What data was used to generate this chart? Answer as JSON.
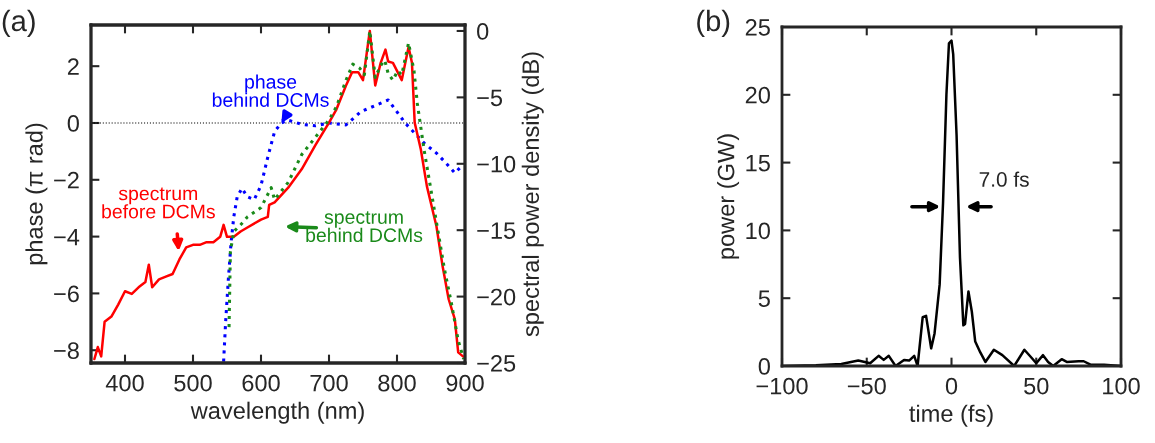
{
  "chart_data": [
    {
      "type": "line",
      "title": "(a)",
      "xlabel": "wavelength (nm)",
      "ylabel": "phase (π rad)",
      "y2label": "spectral power density (dB)",
      "xlim": [
        350,
        900
      ],
      "xticks": [
        400,
        500,
        600,
        700,
        800,
        900
      ],
      "ylim": [
        -8.45,
        3.45
      ],
      "yticks": [
        {
          "value": -8,
          "label": "−8"
        },
        {
          "value": -6,
          "label": "−6"
        },
        {
          "value": -4,
          "label": "−4"
        },
        {
          "value": -2,
          "label": "−2"
        },
        0,
        2
      ],
      "y2lim": [
        -25,
        0.45
      ],
      "y2ticks": [
        {
          "value": -25,
          "label": "−25"
        },
        {
          "value": -20,
          "label": "−20"
        },
        {
          "value": -15,
          "label": "−15"
        },
        {
          "value": -10,
          "label": "−10"
        },
        {
          "value": -5,
          "label": "−5"
        },
        0
      ],
      "ref_lines": [
        {
          "axis": "y",
          "value": 0,
          "color": "#000000",
          "line_style": "dotted"
        }
      ],
      "series": [
        {
          "name": "spectrum\nbefore DCMs",
          "color": "#ff0000",
          "axis": "y2",
          "line_style": "solid",
          "x": [
            355,
            360,
            365,
            370,
            380,
            390,
            400,
            410,
            420,
            430,
            435,
            440,
            450,
            460,
            470,
            480,
            490,
            500,
            510,
            520,
            530,
            540,
            545,
            550,
            560,
            570,
            580,
            600,
            610,
            612,
            620,
            640,
            660,
            680,
            700,
            711,
            725,
            734,
            743,
            750,
            760,
            768,
            776,
            783,
            787,
            794,
            801,
            807,
            817,
            822,
            826,
            835,
            844,
            858,
            867,
            876,
            885,
            890,
            897
          ],
          "values": [
            -24.7,
            -23.8,
            -24.5,
            -21.9,
            -21.5,
            -20.6,
            -19.6,
            -19.8,
            -19.3,
            -18.9,
            -17.6,
            -19.3,
            -18.7,
            -18.5,
            -18.3,
            -17.2,
            -16.3,
            -16.1,
            -16.1,
            -15.9,
            -15.9,
            -15.5,
            -14.6,
            -15.5,
            -15.5,
            -15.1,
            -14.8,
            -14.2,
            -14.0,
            -13.1,
            -12.9,
            -11.8,
            -10.4,
            -8.6,
            -6.9,
            -5.9,
            -4.1,
            -3.1,
            -3.1,
            -3.7,
            0,
            -4.1,
            -2.4,
            -1.4,
            -2.3,
            -2.4,
            -3.1,
            -3.7,
            -1.2,
            -2.4,
            -6.9,
            -8.9,
            -11.7,
            -14.7,
            -17.7,
            -20.2,
            -21.7,
            -24.2,
            -24.5
          ]
        },
        {
          "name": "spectrum\nbehind DCMs",
          "color": "#1a8a1a",
          "axis": "y2",
          "line_style": "dotted",
          "x": [
            553,
            555,
            560,
            570,
            580,
            600,
            615,
            620,
            640,
            660,
            680,
            700,
            711,
            725,
            735,
            745,
            752,
            760,
            768,
            776,
            782,
            787,
            794,
            801,
            807,
            817,
            825,
            830,
            840,
            850,
            860,
            870,
            880,
            890,
            898
          ],
          "values": [
            -22.3,
            -16.6,
            -15.1,
            -14.6,
            -14.0,
            -13.3,
            -11.8,
            -12.7,
            -11.4,
            -9.3,
            -8.0,
            -6.7,
            -5.7,
            -3.7,
            -2.5,
            -2.8,
            -3.3,
            0,
            -3.5,
            -2.6,
            -2.2,
            -3.2,
            -3.7,
            -3.0,
            -3.3,
            -0.9,
            -3.0,
            -5.5,
            -9.0,
            -12.0,
            -15.0,
            -18.0,
            -20.5,
            -23.3,
            -24.7
          ]
        },
        {
          "name": "phase\nbehind DCMs",
          "color": "#0000ff",
          "axis": "y",
          "line_style": "dotted",
          "x": [
            545,
            548,
            552,
            556,
            560,
            565,
            572,
            580,
            590,
            600,
            610,
            620,
            630,
            640,
            660,
            680,
            700,
            725,
            747,
            787,
            812,
            826,
            840,
            858,
            872,
            885,
            897
          ],
          "values": [
            -8.4,
            -7.0,
            -5.5,
            -4.2,
            -3.3,
            -2.6,
            -2.3,
            -2.6,
            -2.7,
            -2.2,
            -1.2,
            -0.3,
            0.0,
            0.1,
            -0.05,
            -0.1,
            0.0,
            -0.07,
            0.4,
            0.81,
            0.0,
            -0.36,
            -0.71,
            -1.06,
            -1.41,
            -1.76,
            -1.47
          ]
        }
      ]
    },
    {
      "type": "line",
      "title": "(b)",
      "xlabel": "time (fs)",
      "ylabel": "power (GW)",
      "xlim": [
        -100,
        100
      ],
      "xticks": [
        {
          "value": -100,
          "label": "−100"
        },
        {
          "value": -50,
          "label": "−50"
        },
        0,
        50,
        100
      ],
      "ylim": [
        0,
        25
      ],
      "yticks": [
        0,
        5,
        10,
        15,
        20,
        25
      ],
      "annotations": [
        "7.0 fs"
      ],
      "series": [
        {
          "color": "#000000",
          "line_style": "solid",
          "x": [
            -100,
            -80,
            -65,
            -55,
            -48,
            -43,
            -40,
            -37,
            -33,
            -28,
            -25,
            -22,
            -20,
            -17,
            -15,
            -12,
            -10,
            -7,
            -5,
            -3,
            -1.5,
            0,
            1,
            3,
            5,
            7,
            8,
            10,
            12,
            14,
            17,
            20,
            25,
            30,
            37,
            43,
            48,
            50,
            54,
            57,
            60,
            65,
            68,
            75,
            78,
            82,
            90,
            100
          ],
          "values": [
            0,
            0.05,
            0.15,
            0.4,
            0.2,
            0.75,
            0.45,
            0.75,
            0,
            0.45,
            0.4,
            0.75,
            0,
            3.6,
            3.7,
            1.3,
            2.4,
            6,
            12,
            20,
            23.8,
            24.0,
            23,
            17,
            8,
            3.0,
            3.1,
            5.5,
            4,
            1.8,
            1,
            0.3,
            1.2,
            0.8,
            0,
            1.2,
            0.5,
            0.2,
            0.8,
            0.3,
            0,
            0.5,
            0.3,
            0.35,
            0.35,
            0.1,
            0.1,
            0
          ]
        }
      ]
    }
  ]
}
